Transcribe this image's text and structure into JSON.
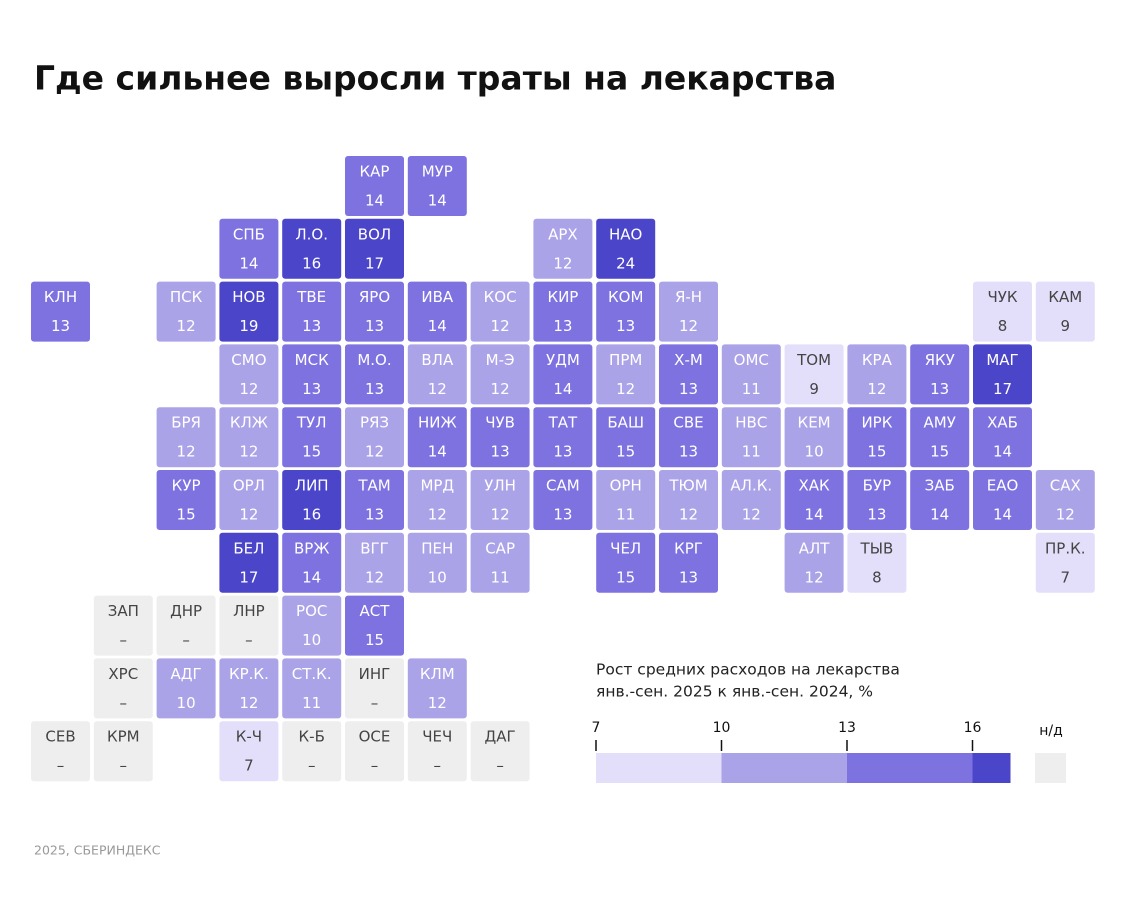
{
  "chart_data": {
    "type": "tilemap",
    "title": "Где сильнее выросли траты на лекарства",
    "legend_title": [
      "Рост средних расходов на лекарства",
      "янв.-сен. 2025 к янв.-сен. 2024, %"
    ],
    "source": "2025, СБЕРИНДЕКС",
    "missing_label": "–",
    "missing_legend": "н/д",
    "missing_color": "#eeeeee",
    "bins": [
      7,
      10,
      13,
      16
    ],
    "colors": [
      "#e3dffa",
      "#aba3e8",
      "#7e72e0",
      "#4b45c9"
    ],
    "rows": [
      [
        null,
        null,
        null,
        null,
        null,
        {
          "code": "КАР",
          "value": 14
        },
        {
          "code": "МУР",
          "value": 14
        }
      ],
      [
        null,
        null,
        null,
        {
          "code": "СПБ",
          "value": 14
        },
        {
          "code": "Л.О.",
          "value": 16
        },
        {
          "code": "ВОЛ",
          "value": 17
        },
        null,
        null,
        {
          "code": "АРХ",
          "value": 12
        },
        {
          "code": "НАО",
          "value": 24
        }
      ],
      [
        {
          "code": "КЛН",
          "value": 13
        },
        null,
        {
          "code": "ПСК",
          "value": 12
        },
        {
          "code": "НОВ",
          "value": 19
        },
        {
          "code": "ТВЕ",
          "value": 13
        },
        {
          "code": "ЯРО",
          "value": 13
        },
        {
          "code": "ИВА",
          "value": 14
        },
        {
          "code": "КОС",
          "value": 12
        },
        {
          "code": "КИР",
          "value": 13
        },
        {
          "code": "КОМ",
          "value": 13
        },
        {
          "code": "Я-Н",
          "value": 12
        },
        null,
        null,
        null,
        null,
        {
          "code": "ЧУК",
          "value": 8
        },
        {
          "code": "КАМ",
          "value": 9
        }
      ],
      [
        null,
        null,
        null,
        {
          "code": "СМО",
          "value": 12
        },
        {
          "code": "МСК",
          "value": 13
        },
        {
          "code": "М.О.",
          "value": 13
        },
        {
          "code": "ВЛА",
          "value": 12
        },
        {
          "code": "М-Э",
          "value": 12
        },
        {
          "code": "УДМ",
          "value": 14
        },
        {
          "code": "ПРМ",
          "value": 12
        },
        {
          "code": "Х-М",
          "value": 13
        },
        {
          "code": "ОМС",
          "value": 11
        },
        {
          "code": "ТОМ",
          "value": 9
        },
        {
          "code": "КРА",
          "value": 12
        },
        {
          "code": "ЯКУ",
          "value": 13
        },
        {
          "code": "МАГ",
          "value": 17
        }
      ],
      [
        null,
        null,
        {
          "code": "БРЯ",
          "value": 12
        },
        {
          "code": "КЛЖ",
          "value": 12
        },
        {
          "code": "ТУЛ",
          "value": 15
        },
        {
          "code": "РЯЗ",
          "value": 12
        },
        {
          "code": "НИЖ",
          "value": 14
        },
        {
          "code": "ЧУВ",
          "value": 13
        },
        {
          "code": "ТАТ",
          "value": 13
        },
        {
          "code": "БАШ",
          "value": 15
        },
        {
          "code": "СВЕ",
          "value": 13
        },
        {
          "code": "НВС",
          "value": 11
        },
        {
          "code": "КЕМ",
          "value": 10
        },
        {
          "code": "ИРК",
          "value": 15
        },
        {
          "code": "АМУ",
          "value": 15
        },
        {
          "code": "ХАБ",
          "value": 14
        }
      ],
      [
        null,
        null,
        {
          "code": "КУР",
          "value": 15
        },
        {
          "code": "ОРЛ",
          "value": 12
        },
        {
          "code": "ЛИП",
          "value": 16
        },
        {
          "code": "ТАМ",
          "value": 13
        },
        {
          "code": "МРД",
          "value": 12
        },
        {
          "code": "УЛН",
          "value": 12
        },
        {
          "code": "САМ",
          "value": 13
        },
        {
          "code": "ОРН",
          "value": 11
        },
        {
          "code": "ТЮМ",
          "value": 12
        },
        {
          "code": "АЛ.К.",
          "value": 12
        },
        {
          "code": "ХАК",
          "value": 14
        },
        {
          "code": "БУР",
          "value": 13
        },
        {
          "code": "ЗАБ",
          "value": 14
        },
        {
          "code": "ЕАО",
          "value": 14
        },
        {
          "code": "САХ",
          "value": 12
        }
      ],
      [
        null,
        null,
        null,
        {
          "code": "БЕЛ",
          "value": 17
        },
        {
          "code": "ВРЖ",
          "value": 14
        },
        {
          "code": "ВГГ",
          "value": 12
        },
        {
          "code": "ПЕН",
          "value": 10
        },
        {
          "code": "САР",
          "value": 11
        },
        null,
        {
          "code": "ЧЕЛ",
          "value": 15
        },
        {
          "code": "КРГ",
          "value": 13
        },
        null,
        {
          "code": "АЛТ",
          "value": 12
        },
        {
          "code": "ТЫВ",
          "value": 8
        },
        null,
        null,
        {
          "code": "ПР.К.",
          "value": 7
        }
      ],
      [
        null,
        {
          "code": "ЗАП",
          "value": null
        },
        {
          "code": "ДНР",
          "value": null
        },
        {
          "code": "ЛНР",
          "value": null
        },
        {
          "code": "РОС",
          "value": 10
        },
        {
          "code": "АСТ",
          "value": 15
        }
      ],
      [
        null,
        {
          "code": "ХРС",
          "value": null
        },
        {
          "code": "АДГ",
          "value": 10
        },
        {
          "code": "КР.К.",
          "value": 12
        },
        {
          "code": "СТ.К.",
          "value": 11
        },
        {
          "code": "ИНГ",
          "value": null
        },
        {
          "code": "КЛМ",
          "value": 12
        }
      ],
      [
        {
          "code": "СЕВ",
          "value": null
        },
        {
          "code": "КРМ",
          "value": null
        },
        null,
        {
          "code": "К-Ч",
          "value": 7
        },
        {
          "code": "К-Б",
          "value": null
        },
        {
          "code": "ОСЕ",
          "value": null
        },
        {
          "code": "ЧЕЧ",
          "value": null
        },
        {
          "code": "ДАГ",
          "value": null
        }
      ]
    ]
  }
}
